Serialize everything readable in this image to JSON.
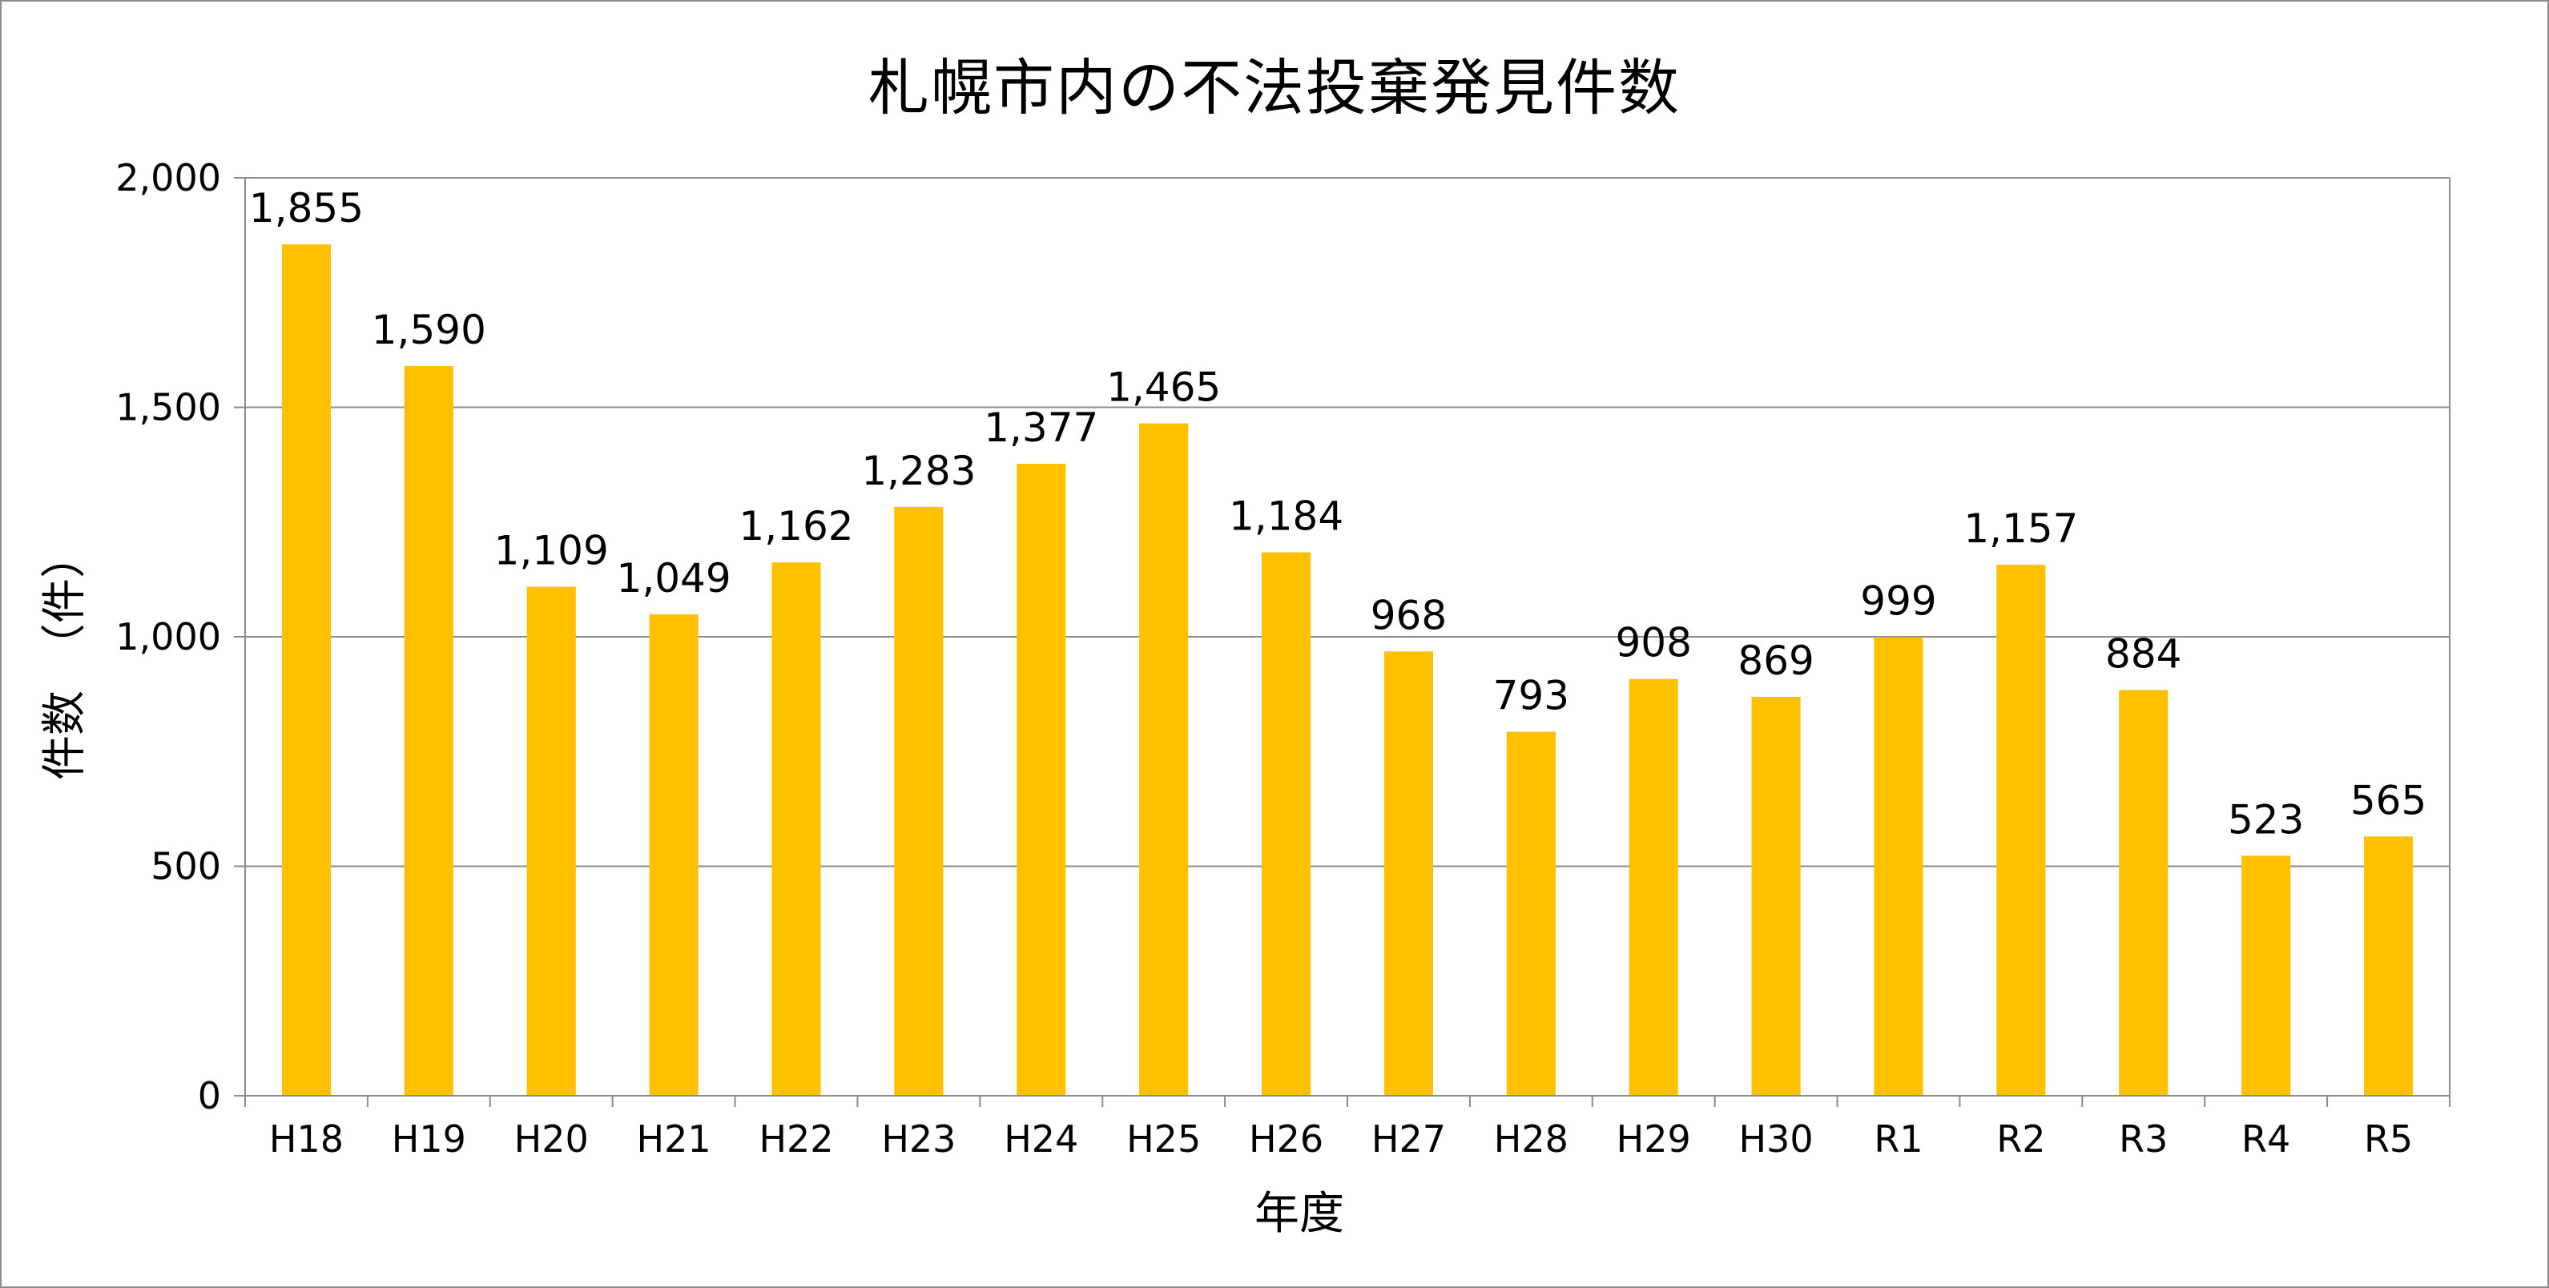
{
  "chart_data": {
    "type": "bar",
    "title": "札幌市内の不法投棄発見件数",
    "xlabel": "年度",
    "ylabel": "件数　（件）",
    "categories": [
      "H18",
      "H19",
      "H20",
      "H21",
      "H22",
      "H23",
      "H24",
      "H25",
      "H26",
      "H27",
      "H28",
      "H29",
      "H30",
      "R1",
      "R2",
      "R3",
      "R4",
      "R5"
    ],
    "values": [
      1855,
      1590,
      1109,
      1049,
      1162,
      1283,
      1377,
      1465,
      1184,
      968,
      793,
      908,
      869,
      999,
      1157,
      884,
      523,
      565
    ],
    "value_labels": [
      "1,855",
      "1,590",
      "1,109",
      "1,049",
      "1,162",
      "1,283",
      "1,377",
      "1,465",
      "1,184",
      "968",
      "793",
      "908",
      "869",
      "999",
      "1,157",
      "884",
      "523",
      "565"
    ],
    "ylim": [
      0,
      2000
    ],
    "yticks": [
      0,
      500,
      1000,
      1500,
      2000
    ],
    "ytick_labels": [
      "0",
      "500",
      "1,000",
      "1,500",
      "2,000"
    ],
    "grid": true,
    "colors": {
      "bar": "#FFC000",
      "grid": "#8c8c8c",
      "axis": "#8c8c8c",
      "frame": "#8c8c8c"
    }
  }
}
